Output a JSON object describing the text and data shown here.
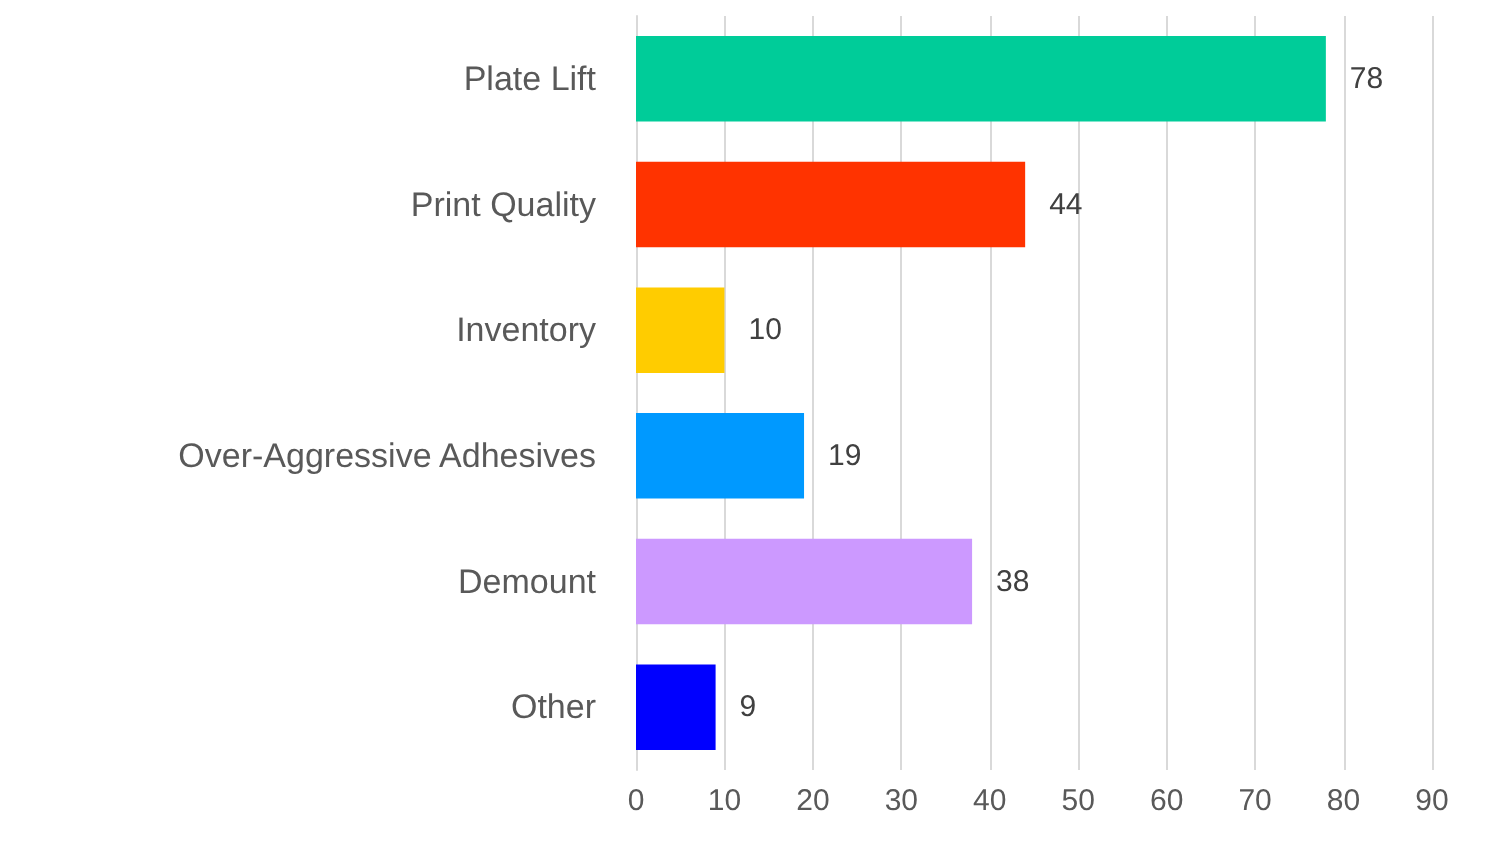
{
  "chart_data": {
    "type": "bar",
    "orientation": "horizontal",
    "categories": [
      "Plate Lift",
      "Print Quality",
      "Inventory",
      "Over-Aggressive Adhesives",
      "Demount",
      "Other"
    ],
    "values": [
      78,
      44,
      10,
      19,
      38,
      9
    ],
    "colors": [
      "#00cc99",
      "#ff3300",
      "#ffcc00",
      "#0099ff",
      "#cc99ff",
      "#0000ff"
    ],
    "xlim": [
      0,
      90
    ],
    "xticks": [
      0,
      10,
      20,
      30,
      40,
      50,
      60,
      70,
      80,
      90
    ],
    "grid": "x",
    "data_labels": true
  }
}
